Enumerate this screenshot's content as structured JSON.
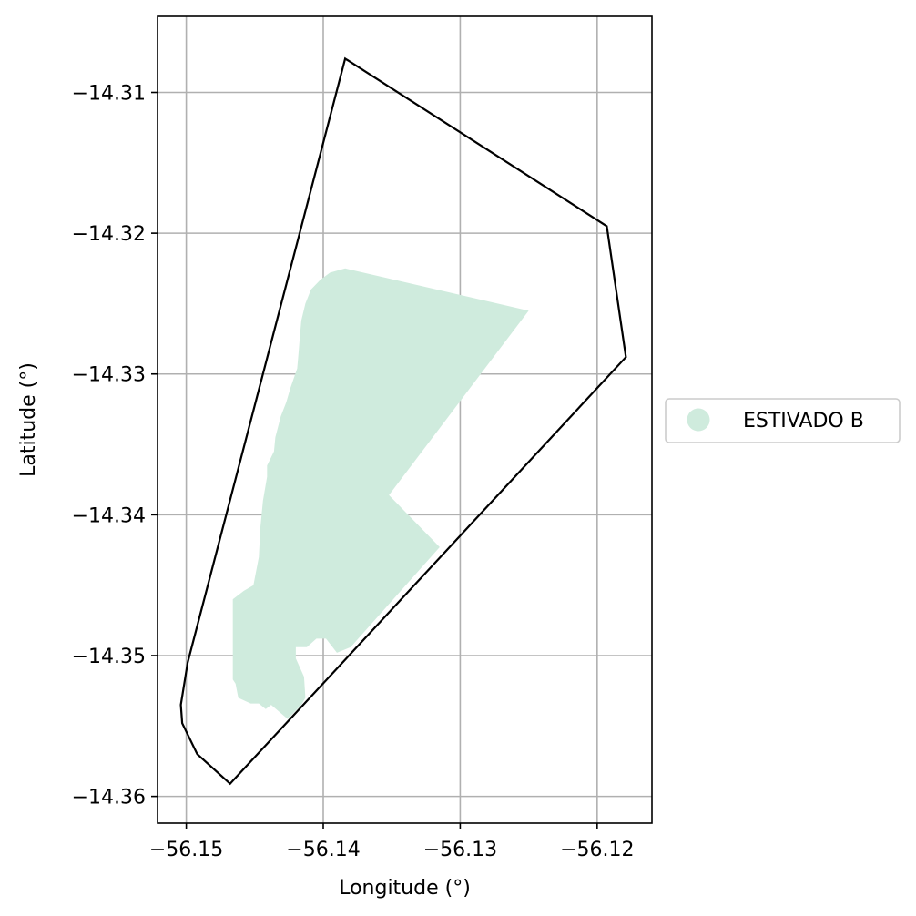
{
  "chart_data": {
    "type": "map",
    "xlabel": "Longitude (°)",
    "ylabel": "Latitude (°)",
    "xlim": [
      -56.1521,
      -56.116
    ],
    "ylim": [
      -14.3619,
      -14.3046
    ],
    "grid": true,
    "x_ticks": [
      {
        "value": -56.15,
        "label": "−56.15"
      },
      {
        "value": -56.14,
        "label": "−56.14"
      },
      {
        "value": -56.13,
        "label": "−56.13"
      },
      {
        "value": -56.12,
        "label": "−56.12"
      }
    ],
    "y_ticks": [
      {
        "value": -14.31,
        "label": "−14.31"
      },
      {
        "value": -14.32,
        "label": "−14.32"
      },
      {
        "value": -14.33,
        "label": "−14.33"
      },
      {
        "value": -14.34,
        "label": "−14.34"
      },
      {
        "value": -14.35,
        "label": "−14.35"
      },
      {
        "value": -14.36,
        "label": "−14.36"
      }
    ],
    "legend": {
      "placement": "right",
      "entries": [
        {
          "label": "ESTIVADO B",
          "color": "#cfebdd"
        }
      ]
    },
    "boundary": {
      "color": "#000000",
      "coords": [
        [
          -56.1384,
          -14.3076
        ],
        [
          -56.1193,
          -14.3195
        ],
        [
          -56.1179,
          -14.3288
        ],
        [
          -56.1468,
          -14.3591
        ],
        [
          -56.1492,
          -14.357
        ],
        [
          -56.1503,
          -14.3548
        ],
        [
          -56.1504,
          -14.3535
        ],
        [
          -56.1499,
          -14.3505
        ],
        [
          -56.1384,
          -14.3076
        ]
      ]
    },
    "region": {
      "name": "ESTIVADO B",
      "color": "#cfebdd",
      "coords": [
        [
          -56.1384,
          -14.3225
        ],
        [
          -56.125,
          -14.3255
        ],
        [
          -56.1352,
          -14.3386
        ],
        [
          -56.1315,
          -14.3423
        ],
        [
          -56.138,
          -14.3494
        ],
        [
          -56.139,
          -14.3498
        ],
        [
          -56.1398,
          -14.3488
        ],
        [
          -56.1405,
          -14.3488
        ],
        [
          -56.1412,
          -14.3494
        ],
        [
          -56.142,
          -14.3494
        ],
        [
          -56.142,
          -14.3502
        ],
        [
          -56.1414,
          -14.3515
        ],
        [
          -56.1413,
          -14.353
        ],
        [
          -56.1416,
          -14.3535
        ],
        [
          -56.1426,
          -14.3545
        ],
        [
          -56.1438,
          -14.3535
        ],
        [
          -56.1442,
          -14.3538
        ],
        [
          -56.1447,
          -14.3534
        ],
        [
          -56.1453,
          -14.3534
        ],
        [
          -56.1462,
          -14.353
        ],
        [
          -56.1464,
          -14.352
        ],
        [
          -56.1466,
          -14.3517
        ],
        [
          -56.1466,
          -14.346
        ],
        [
          -56.1458,
          -14.3454
        ],
        [
          -56.1451,
          -14.345
        ],
        [
          -56.1447,
          -14.343
        ],
        [
          -56.1446,
          -14.341
        ],
        [
          -56.1444,
          -14.339
        ],
        [
          -56.1441,
          -14.3373
        ],
        [
          -56.1441,
          -14.3365
        ],
        [
          -56.1436,
          -14.3355
        ],
        [
          -56.1435,
          -14.3345
        ],
        [
          -56.1431,
          -14.333
        ],
        [
          -56.1427,
          -14.332
        ],
        [
          -56.1424,
          -14.331
        ],
        [
          -56.1419,
          -14.3296
        ],
        [
          -56.1418,
          -14.3285
        ],
        [
          -56.1417,
          -14.3273
        ],
        [
          -56.1416,
          -14.3262
        ],
        [
          -56.1413,
          -14.325
        ],
        [
          -56.1409,
          -14.324
        ],
        [
          -56.1402,
          -14.3233
        ],
        [
          -56.1395,
          -14.3228
        ],
        [
          -56.1384,
          -14.3225
        ]
      ]
    }
  }
}
